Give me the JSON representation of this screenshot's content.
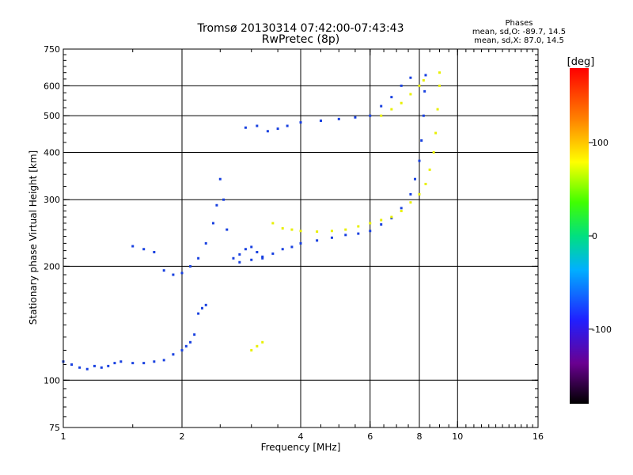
{
  "chart_data": {
    "type": "scatter",
    "title": "Tromsø 20130314 07:42:00-07:43:43",
    "subtitle": "RwPretec (8p)",
    "xlabel": "Frequency [MHz]",
    "ylabel": "Stationary phase Virtual Height [km]",
    "x_scale": "log",
    "y_scale": "log",
    "xlim": [
      1,
      16
    ],
    "ylim": [
      75,
      750
    ],
    "x_ticks": [
      "1",
      "2",
      "4",
      "6",
      "8",
      "10",
      "16"
    ],
    "y_ticks": [
      "75",
      "100",
      "200",
      "300",
      "400",
      "500",
      "600",
      "750"
    ],
    "grid": true,
    "grid_x": [
      2,
      4,
      6,
      8,
      10
    ],
    "grid_y": [
      100,
      200,
      300,
      400,
      500,
      600
    ],
    "phases_title": "Phases",
    "phases_o": "mean, sd,O: -89.7, 14.5",
    "phases_x": "mean, sd,X:  87.0, 14.5",
    "colorbar": {
      "label": "[deg]",
      "range": [
        -180,
        180
      ],
      "ticks": [
        "100",
        "0",
        "-100"
      ],
      "tick_values": [
        100,
        0,
        -100
      ]
    },
    "colors": {
      "o_mode": "#1840e0",
      "x_mode": "#e8f000",
      "grid": "#000000"
    },
    "series": [
      {
        "mode": "O",
        "phase_deg": -90,
        "points": [
          [
            1.0,
            112
          ],
          [
            1.05,
            110
          ],
          [
            1.1,
            108
          ],
          [
            1.15,
            107
          ],
          [
            1.2,
            109
          ],
          [
            1.25,
            108
          ],
          [
            1.3,
            109
          ],
          [
            1.35,
            111
          ],
          [
            1.4,
            112
          ],
          [
            1.5,
            111
          ],
          [
            1.6,
            111
          ],
          [
            1.7,
            112
          ],
          [
            1.8,
            113
          ],
          [
            1.9,
            117
          ],
          [
            2.0,
            120
          ],
          [
            2.05,
            123
          ],
          [
            2.1,
            126
          ],
          [
            2.15,
            132
          ],
          [
            2.2,
            150
          ],
          [
            2.25,
            155
          ],
          [
            2.3,
            158
          ],
          [
            1.5,
            226
          ],
          [
            1.6,
            222
          ],
          [
            1.7,
            218
          ],
          [
            1.8,
            195
          ],
          [
            1.9,
            190
          ],
          [
            2.0,
            192
          ],
          [
            2.1,
            200
          ],
          [
            2.2,
            210
          ],
          [
            2.3,
            230
          ],
          [
            2.4,
            260
          ],
          [
            2.45,
            290
          ],
          [
            2.5,
            340
          ],
          [
            2.55,
            300
          ],
          [
            2.6,
            250
          ],
          [
            2.7,
            210
          ],
          [
            2.8,
            215
          ],
          [
            2.9,
            222
          ],
          [
            3.0,
            225
          ],
          [
            3.1,
            218
          ],
          [
            3.2,
            210
          ],
          [
            2.8,
            205
          ],
          [
            3.0,
            208
          ],
          [
            3.2,
            212
          ],
          [
            3.4,
            216
          ],
          [
            3.6,
            222
          ],
          [
            3.8,
            225
          ],
          [
            4.0,
            230
          ],
          [
            4.4,
            234
          ],
          [
            4.8,
            238
          ],
          [
            5.2,
            242
          ],
          [
            5.6,
            244
          ],
          [
            6.0,
            248
          ],
          [
            6.4,
            258
          ],
          [
            6.8,
            268
          ],
          [
            7.2,
            285
          ],
          [
            7.6,
            310
          ],
          [
            7.8,
            340
          ],
          [
            8.0,
            380
          ],
          [
            8.1,
            430
          ],
          [
            8.2,
            500
          ],
          [
            8.25,
            580
          ],
          [
            8.3,
            640
          ],
          [
            2.9,
            465
          ],
          [
            3.1,
            470
          ],
          [
            3.3,
            455
          ],
          [
            3.5,
            462
          ],
          [
            3.7,
            470
          ],
          [
            4.0,
            480
          ],
          [
            4.5,
            485
          ],
          [
            5.0,
            490
          ],
          [
            5.5,
            495
          ],
          [
            6.0,
            500
          ],
          [
            6.4,
            530
          ],
          [
            6.8,
            560
          ],
          [
            7.2,
            600
          ],
          [
            7.6,
            630
          ]
        ]
      },
      {
        "mode": "X",
        "phase_deg": 87,
        "points": [
          [
            3.4,
            260
          ],
          [
            3.6,
            252
          ],
          [
            3.8,
            250
          ],
          [
            4.0,
            248
          ],
          [
            4.4,
            247
          ],
          [
            4.8,
            248
          ],
          [
            5.2,
            250
          ],
          [
            5.6,
            255
          ],
          [
            6.0,
            260
          ],
          [
            6.4,
            265
          ],
          [
            6.8,
            270
          ],
          [
            7.2,
            280
          ],
          [
            7.6,
            295
          ],
          [
            8.0,
            310
          ],
          [
            8.3,
            330
          ],
          [
            8.5,
            360
          ],
          [
            8.7,
            400
          ],
          [
            8.8,
            450
          ],
          [
            8.9,
            520
          ],
          [
            9.0,
            600
          ],
          [
            9.0,
            650
          ],
          [
            6.4,
            500
          ],
          [
            6.8,
            520
          ],
          [
            7.2,
            540
          ],
          [
            7.6,
            570
          ],
          [
            8.0,
            600
          ],
          [
            8.2,
            620
          ],
          [
            3.0,
            120
          ],
          [
            3.1,
            123
          ],
          [
            3.2,
            126
          ]
        ]
      }
    ]
  }
}
